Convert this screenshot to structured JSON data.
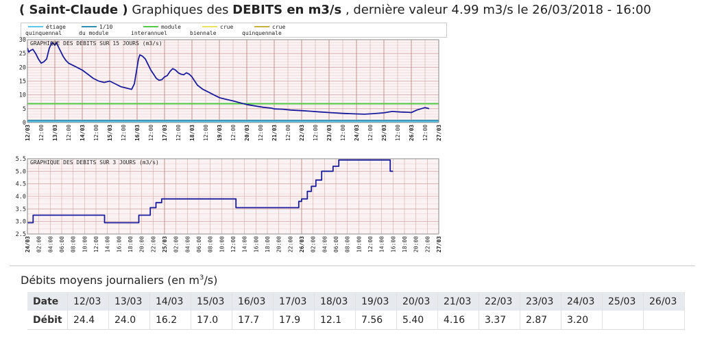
{
  "header": {
    "station": "( Saint-Claude )",
    "text1": "Graphiques des",
    "bold": "DEBITS en m3/s",
    "text2": ", dernière valeur 4.99 m3/s le 26/03/2018 - 16:00"
  },
  "legend": [
    {
      "l1": "étiage",
      "l2": "quinquennal",
      "color": "#5bc8ea"
    },
    {
      "l1": "1/10",
      "l2": "du module",
      "color": "#2f8fb2"
    },
    {
      "l1": "module",
      "l2": "interannuel",
      "color": "#55c947"
    },
    {
      "l1": "crue",
      "l2": "biennale",
      "color": "#e9e35b"
    },
    {
      "l1": "crue",
      "l2": "quinquennale",
      "color": "#c8b43c"
    }
  ],
  "colors": {
    "series": "#1a1a9c",
    "grid_major": "#d3a9a9",
    "grid_minor": "#ecd3d3",
    "bg": "#fbf3f3",
    "module": "#55c947",
    "etiage": "#5bc8ea",
    "dixieme": "#2f8fb2"
  },
  "chart_data": [
    {
      "type": "line",
      "title": "GRAPHIQUE DES DEBITS SUR 15 JOURS (m3/s)",
      "ylim": [
        0,
        30
      ],
      "yticks": [
        0,
        5,
        10,
        15,
        20,
        25,
        30
      ],
      "xlim": [
        0,
        15
      ],
      "xticks": [
        {
          "x": 0,
          "label": "12/03",
          "bold": true
        },
        {
          "x": 0.5,
          "label": "12:00",
          "bold": false
        },
        {
          "x": 1,
          "label": "13/03",
          "bold": true
        },
        {
          "x": 1.5,
          "label": "12:00",
          "bold": false
        },
        {
          "x": 2,
          "label": "14/03",
          "bold": true
        },
        {
          "x": 2.5,
          "label": "12:00",
          "bold": false
        },
        {
          "x": 3,
          "label": "15/03",
          "bold": true
        },
        {
          "x": 3.5,
          "label": "12:00",
          "bold": false
        },
        {
          "x": 4,
          "label": "16/03",
          "bold": true
        },
        {
          "x": 4.5,
          "label": "12:00",
          "bold": false
        },
        {
          "x": 5,
          "label": "17/03",
          "bold": true
        },
        {
          "x": 5.5,
          "label": "12:00",
          "bold": false
        },
        {
          "x": 6,
          "label": "18/03",
          "bold": true
        },
        {
          "x": 6.5,
          "label": "12:00",
          "bold": false
        },
        {
          "x": 7,
          "label": "19/03",
          "bold": true
        },
        {
          "x": 7.5,
          "label": "12:00",
          "bold": false
        },
        {
          "x": 8,
          "label": "20/03",
          "bold": true
        },
        {
          "x": 8.5,
          "label": "12:00",
          "bold": false
        },
        {
          "x": 9,
          "label": "21/03",
          "bold": true
        },
        {
          "x": 9.5,
          "label": "12:00",
          "bold": false
        },
        {
          "x": 10,
          "label": "22/03",
          "bold": true
        },
        {
          "x": 10.5,
          "label": "12:00",
          "bold": false
        },
        {
          "x": 11,
          "label": "23/03",
          "bold": true
        },
        {
          "x": 11.5,
          "label": "12:00",
          "bold": false
        },
        {
          "x": 12,
          "label": "24/03",
          "bold": true
        },
        {
          "x": 12.5,
          "label": "12:00",
          "bold": false
        },
        {
          "x": 13,
          "label": "25/03",
          "bold": true
        },
        {
          "x": 13.5,
          "label": "12:00",
          "bold": false
        },
        {
          "x": 14,
          "label": "26/03",
          "bold": true
        },
        {
          "x": 14.5,
          "label": "12:00",
          "bold": false
        },
        {
          "x": 15,
          "label": "27/03",
          "bold": true
        }
      ],
      "reference_lines": [
        {
          "name": "module",
          "value": 6.8,
          "color": "#55c947"
        },
        {
          "name": "1/10 du module",
          "value": 0.68,
          "color": "#2f8fb2"
        },
        {
          "name": "étiage quinquennal",
          "value": 0.25,
          "color": "#5bc8ea"
        }
      ],
      "series": [
        {
          "x": [
            0,
            0.05,
            0.1,
            0.2,
            0.3,
            0.4,
            0.5,
            0.6,
            0.7,
            0.8,
            0.9,
            1.0,
            1.05,
            1.1,
            1.2,
            1.3,
            1.4,
            1.5,
            1.6,
            1.8,
            2.0,
            2.2,
            2.4,
            2.6,
            2.8,
            3.0,
            3.2,
            3.4,
            3.6,
            3.8,
            3.9,
            4.0,
            4.05,
            4.1,
            4.2,
            4.3,
            4.4,
            4.5,
            4.6,
            4.7,
            4.8,
            4.9,
            5.0,
            5.1,
            5.2,
            5.3,
            5.4,
            5.5,
            5.6,
            5.7,
            5.8,
            5.9,
            6.0,
            6.1,
            6.2,
            6.4,
            6.6,
            6.8,
            7.0,
            7.2,
            7.5,
            7.8,
            8.0,
            8.3,
            8.6,
            8.9,
            9.0,
            9.3,
            9.6,
            10.0,
            10.3,
            10.7,
            11.0,
            11.5,
            12.0,
            12.3,
            12.6,
            13.0,
            13.3,
            13.6,
            13.9,
            14.0,
            14.2,
            14.5,
            14.65
          ],
          "y": [
            27,
            25.5,
            26,
            26.5,
            25,
            23,
            21.5,
            22,
            23,
            27,
            29,
            28,
            29,
            28,
            26,
            24,
            22.5,
            21.5,
            21,
            20,
            19,
            17.5,
            16,
            15,
            14.5,
            15,
            14,
            13,
            12.5,
            12,
            14,
            20,
            23,
            24.5,
            24,
            23,
            21,
            19,
            17.5,
            16,
            15.3,
            15.5,
            16.5,
            17,
            18.5,
            19.5,
            19,
            18,
            17.5,
            17.3,
            18,
            17.5,
            16.5,
            15,
            13.5,
            12,
            11,
            10,
            9,
            8.5,
            7.8,
            7,
            6.5,
            6,
            5.5,
            5.2,
            4.9,
            4.8,
            4.5,
            4.3,
            4.1,
            3.8,
            3.6,
            3.3,
            3.1,
            3.0,
            3.2,
            3.5,
            4.0,
            3.8,
            3.7,
            3.6,
            4.5,
            5.4,
            5.0
          ]
        }
      ]
    },
    {
      "type": "line",
      "title": "GRAPHIQUE DES DEBITS SUR 3 JOURS (m3/s)",
      "ylim": [
        2.5,
        5.5
      ],
      "yticks": [
        2.5,
        3.0,
        3.5,
        4.0,
        4.5,
        5.0,
        5.5
      ],
      "xlim": [
        0,
        72
      ],
      "xticks": [
        {
          "x": 0,
          "label": "24/03",
          "bold": true
        },
        {
          "x": 2,
          "label": "02:00",
          "bold": false
        },
        {
          "x": 4,
          "label": "04:00",
          "bold": false
        },
        {
          "x": 6,
          "label": "06:00",
          "bold": false
        },
        {
          "x": 8,
          "label": "08:00",
          "bold": false
        },
        {
          "x": 10,
          "label": "10:00",
          "bold": false
        },
        {
          "x": 12,
          "label": "12:00",
          "bold": false
        },
        {
          "x": 14,
          "label": "14:00",
          "bold": false
        },
        {
          "x": 16,
          "label": "16:00",
          "bold": false
        },
        {
          "x": 18,
          "label": "18:00",
          "bold": false
        },
        {
          "x": 20,
          "label": "20:00",
          "bold": false
        },
        {
          "x": 22,
          "label": "22:00",
          "bold": false
        },
        {
          "x": 24,
          "label": "25/03",
          "bold": true
        },
        {
          "x": 26,
          "label": "02:00",
          "bold": false
        },
        {
          "x": 28,
          "label": "04:00",
          "bold": false
        },
        {
          "x": 30,
          "label": "06:00",
          "bold": false
        },
        {
          "x": 32,
          "label": "08:00",
          "bold": false
        },
        {
          "x": 34,
          "label": "10:00",
          "bold": false
        },
        {
          "x": 36,
          "label": "12:00",
          "bold": false
        },
        {
          "x": 38,
          "label": "14:00",
          "bold": false
        },
        {
          "x": 40,
          "label": "16:00",
          "bold": false
        },
        {
          "x": 42,
          "label": "18:00",
          "bold": false
        },
        {
          "x": 44,
          "label": "20:00",
          "bold": false
        },
        {
          "x": 46,
          "label": "22:00",
          "bold": false
        },
        {
          "x": 48,
          "label": "26/03",
          "bold": true
        },
        {
          "x": 50,
          "label": "02:00",
          "bold": false
        },
        {
          "x": 52,
          "label": "04:00",
          "bold": false
        },
        {
          "x": 54,
          "label": "06:00",
          "bold": false
        },
        {
          "x": 56,
          "label": "08:00",
          "bold": false
        },
        {
          "x": 58,
          "label": "10:00",
          "bold": false
        },
        {
          "x": 60,
          "label": "12:00",
          "bold": false
        },
        {
          "x": 62,
          "label": "14:00",
          "bold": false
        },
        {
          "x": 64,
          "label": "16:00",
          "bold": false
        },
        {
          "x": 66,
          "label": "18:00",
          "bold": false
        },
        {
          "x": 68,
          "label": "20:00",
          "bold": false
        },
        {
          "x": 70,
          "label": "22:00",
          "bold": false
        },
        {
          "x": 72,
          "label": "27/03",
          "bold": true
        }
      ],
      "series": [
        {
          "x": [
            0,
            1,
            1,
            13.5,
            13.5,
            19.5,
            19.5,
            21.5,
            21.5,
            22.5,
            22.5,
            23.5,
            23.5,
            36.5,
            36.5,
            47.5,
            47.5,
            48,
            48,
            49,
            49,
            49.7,
            49.7,
            50.5,
            50.5,
            51.5,
            51.5,
            53.5,
            53.5,
            54.5,
            54.5,
            63.5,
            63.5,
            64
          ],
          "y": [
            2.95,
            2.95,
            3.25,
            3.25,
            2.95,
            2.95,
            3.25,
            3.25,
            3.55,
            3.55,
            3.75,
            3.75,
            3.9,
            3.9,
            3.55,
            3.55,
            3.8,
            3.8,
            3.9,
            3.9,
            4.2,
            4.2,
            4.4,
            4.4,
            4.65,
            4.65,
            5.0,
            5.0,
            5.2,
            5.2,
            5.45,
            5.45,
            5.0,
            5.0
          ]
        }
      ]
    }
  ],
  "daily_table": {
    "title": "Débits moyens journaliers (en m",
    "title_sup": "3",
    "title_end": "/s)",
    "date_label": "Date",
    "value_label": "Débit",
    "dates": [
      "12/03",
      "13/03",
      "14/03",
      "15/03",
      "16/03",
      "17/03",
      "18/03",
      "19/03",
      "20/03",
      "21/03",
      "22/03",
      "23/03",
      "24/03",
      "25/03",
      "26/03"
    ],
    "values": [
      "24.4",
      "24.0",
      "16.2",
      "17.0",
      "17.7",
      "17.9",
      "12.1",
      "7.56",
      "5.40",
      "4.16",
      "3.37",
      "2.87",
      "3.20",
      "",
      ""
    ]
  }
}
